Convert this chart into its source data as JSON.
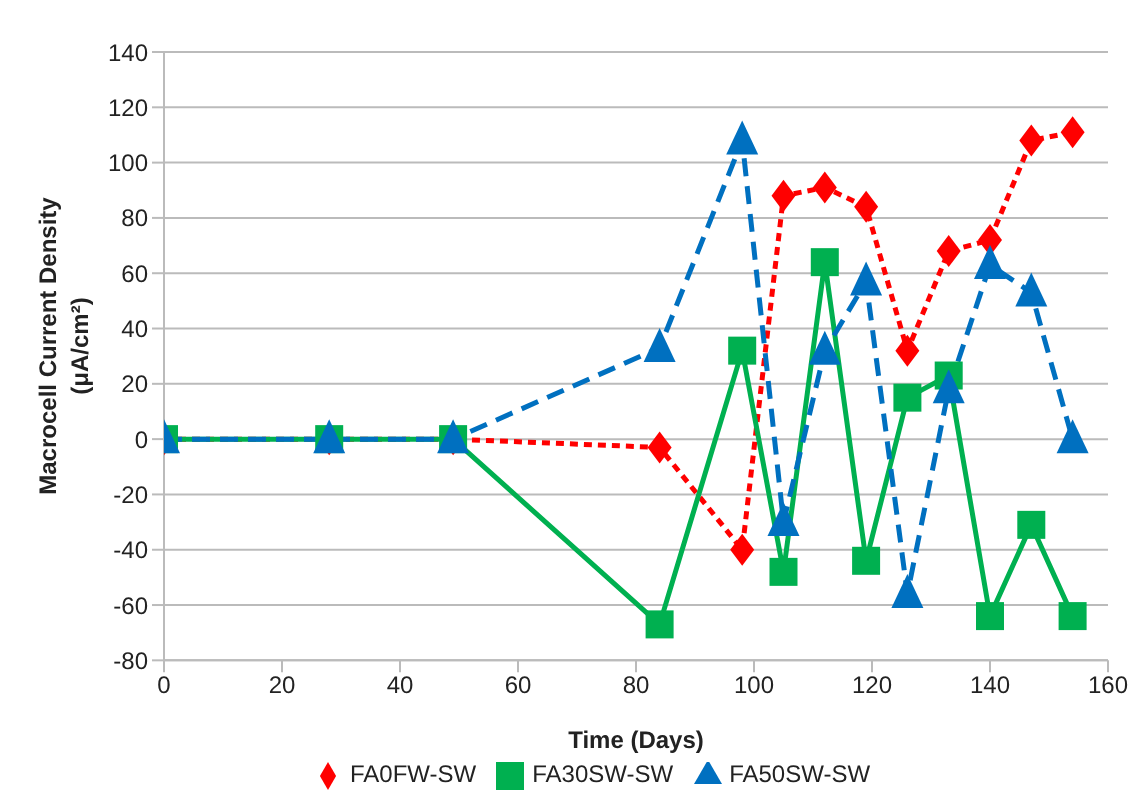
{
  "chart_data": {
    "type": "line",
    "xlabel": "Time (Days)",
    "ylabel": "Macrocell Current Density (μA/cm²)",
    "x": [
      0,
      28,
      49,
      84,
      98,
      105,
      112,
      119,
      126,
      133,
      140,
      147,
      154
    ],
    "series": [
      {
        "name": "FA0FW-SW",
        "color": "#ff0000",
        "marker": "diamond",
        "line_style": "dotted",
        "values": [
          0,
          0,
          0,
          -3,
          -40,
          88,
          91,
          84,
          32,
          68,
          72,
          108,
          111
        ]
      },
      {
        "name": "FA30SW-SW",
        "color": "#00b050",
        "marker": "square",
        "line_style": "solid",
        "values": [
          0,
          0,
          0,
          -67,
          32,
          -48,
          64,
          -44,
          15,
          23,
          -64,
          -31,
          -64
        ]
      },
      {
        "name": "FA50SW-SW",
        "color": "#0070c0",
        "marker": "triangle",
        "line_style": "dashed",
        "values": [
          0,
          0,
          0,
          33,
          108,
          -30,
          32,
          57,
          -56,
          18,
          63,
          53,
          0
        ]
      }
    ],
    "xlim": [
      0,
      160
    ],
    "xticks": [
      0,
      20,
      40,
      60,
      80,
      100,
      120,
      140,
      160
    ],
    "ylim": [
      -80,
      140
    ],
    "yticks": [
      -80,
      -60,
      -40,
      -20,
      0,
      20,
      40,
      60,
      80,
      100,
      120,
      140
    ],
    "grid": "y",
    "legend": "bottom"
  }
}
